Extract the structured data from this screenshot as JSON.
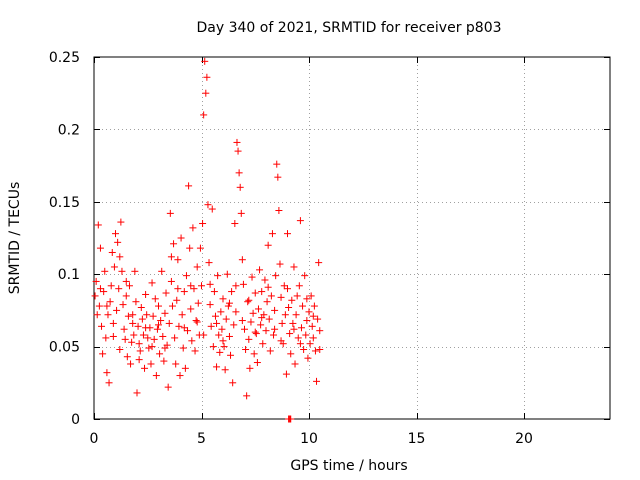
{
  "chart_data": {
    "type": "scatter",
    "title": "Day 340 of 2021, SRMTID for receiver p803",
    "xlabel": "GPS time / hours",
    "ylabel": "SRMTID / TECUs",
    "xlim": [
      0,
      24
    ],
    "ylim": [
      0,
      0.25
    ],
    "xticks": [
      0,
      5,
      10,
      15,
      20
    ],
    "xtick_labels": [
      "0",
      "5",
      "10",
      "15",
      "20"
    ],
    "yticks": [
      0,
      0.05,
      0.1,
      0.15,
      0.2,
      0.25
    ],
    "ytick_labels": [
      "0",
      "0.05",
      "0.1",
      "0.15",
      "0.2",
      "0.25"
    ],
    "grid": true,
    "marker": "+",
    "color": "#ff0000",
    "series": [
      {
        "name": "SRMTID",
        "points": [
          [
            0.05,
            0.085
          ],
          [
            0.1,
            0.095
          ],
          [
            0.15,
            0.072
          ],
          [
            0.2,
            0.134
          ],
          [
            0.25,
            0.078
          ],
          [
            0.3,
            0.118
          ],
          [
            0.35,
            0.064
          ],
          [
            0.4,
            0.045
          ],
          [
            0.45,
            0.088
          ],
          [
            0.5,
            0.102
          ],
          [
            0.55,
            0.056
          ],
          [
            0.6,
            0.032
          ],
          [
            0.65,
            0.072
          ],
          [
            0.7,
            0.025
          ],
          [
            0.75,
            0.081
          ],
          [
            0.8,
            0.092
          ],
          [
            0.85,
            0.115
          ],
          [
            0.9,
            0.066
          ],
          [
            0.95,
            0.105
          ],
          [
            1.0,
            0.128
          ],
          [
            1.05,
            0.075
          ],
          [
            1.1,
            0.122
          ],
          [
            1.15,
            0.09
          ],
          [
            1.2,
            0.048
          ],
          [
            1.25,
            0.136
          ],
          [
            1.3,
            0.102
          ],
          [
            1.35,
            0.079
          ],
          [
            1.4,
            0.062
          ],
          [
            1.45,
            0.055
          ],
          [
            1.5,
            0.085
          ],
          [
            1.55,
            0.043
          ],
          [
            1.6,
            0.071
          ],
          [
            1.65,
            0.092
          ],
          [
            1.7,
            0.038
          ],
          [
            1.75,
            0.053
          ],
          [
            1.8,
            0.066
          ],
          [
            1.85,
            0.058
          ],
          [
            1.9,
            0.102
          ],
          [
            1.95,
            0.081
          ],
          [
            2.0,
            0.018
          ],
          [
            2.05,
            0.064
          ],
          [
            2.1,
            0.052
          ],
          [
            2.15,
            0.047
          ],
          [
            2.2,
            0.077
          ],
          [
            2.25,
            0.069
          ],
          [
            2.3,
            0.058
          ],
          [
            2.35,
            0.035
          ],
          [
            2.4,
            0.086
          ],
          [
            2.45,
            0.072
          ],
          [
            2.5,
            0.056
          ],
          [
            2.55,
            0.049
          ],
          [
            2.6,
            0.063
          ],
          [
            2.65,
            0.038
          ],
          [
            2.7,
            0.094
          ],
          [
            2.75,
            0.071
          ],
          [
            2.8,
            0.055
          ],
          [
            2.85,
            0.083
          ],
          [
            2.9,
            0.03
          ],
          [
            2.95,
            0.062
          ],
          [
            3.0,
            0.078
          ],
          [
            3.05,
            0.045
          ],
          [
            3.1,
            0.068
          ],
          [
            3.15,
            0.102
          ],
          [
            3.2,
            0.057
          ],
          [
            3.25,
            0.04
          ],
          [
            3.3,
            0.073
          ],
          [
            3.35,
            0.087
          ],
          [
            3.4,
            0.051
          ],
          [
            3.45,
            0.022
          ],
          [
            3.5,
            0.066
          ],
          [
            3.55,
            0.142
          ],
          [
            3.6,
            0.095
          ],
          [
            3.65,
            0.078
          ],
          [
            3.7,
            0.121
          ],
          [
            3.75,
            0.056
          ],
          [
            3.8,
            0.038
          ],
          [
            3.85,
            0.082
          ],
          [
            3.9,
            0.11
          ],
          [
            3.95,
            0.064
          ],
          [
            4.0,
            0.03
          ],
          [
            4.05,
            0.125
          ],
          [
            4.1,
            0.072
          ],
          [
            4.15,
            0.049
          ],
          [
            4.2,
            0.088
          ],
          [
            4.25,
            0.035
          ],
          [
            4.3,
            0.099
          ],
          [
            4.35,
            0.061
          ],
          [
            4.4,
            0.161
          ],
          [
            4.45,
            0.118
          ],
          [
            4.5,
            0.076
          ],
          [
            4.55,
            0.054
          ],
          [
            4.6,
            0.132
          ],
          [
            4.65,
            0.09
          ],
          [
            4.7,
            0.047
          ],
          [
            4.75,
            0.068
          ],
          [
            4.8,
            0.105
          ],
          [
            4.85,
            0.08
          ],
          [
            4.9,
            0.058
          ],
          [
            4.95,
            0.118
          ],
          [
            5.0,
            0.092
          ],
          [
            5.05,
            0.135
          ],
          [
            5.1,
            0.21
          ],
          [
            5.15,
            0.247
          ],
          [
            5.2,
            0.225
          ],
          [
            5.25,
            0.236
          ],
          [
            5.3,
            0.148
          ],
          [
            5.35,
            0.108
          ],
          [
            5.4,
            0.079
          ],
          [
            5.45,
            0.064
          ],
          [
            5.5,
            0.145
          ],
          [
            5.55,
            0.05
          ],
          [
            5.6,
            0.088
          ],
          [
            5.65,
            0.071
          ],
          [
            5.7,
            0.036
          ],
          [
            5.75,
            0.099
          ],
          [
            5.8,
            0.058
          ],
          [
            5.85,
            0.046
          ],
          [
            5.9,
            0.074
          ],
          [
            5.95,
            0.062
          ],
          [
            6.0,
            0.083
          ],
          [
            6.05,
            0.05
          ],
          [
            6.1,
            0.034
          ],
          [
            6.15,
            0.069
          ],
          [
            6.2,
            0.1
          ],
          [
            6.25,
            0.078
          ],
          [
            6.3,
            0.057
          ],
          [
            6.35,
            0.044
          ],
          [
            6.4,
            0.088
          ],
          [
            6.45,
            0.025
          ],
          [
            6.5,
            0.065
          ],
          [
            6.55,
            0.135
          ],
          [
            6.6,
            0.074
          ],
          [
            6.65,
            0.191
          ],
          [
            6.7,
            0.185
          ],
          [
            6.75,
            0.17
          ],
          [
            6.8,
            0.16
          ],
          [
            6.85,
            0.142
          ],
          [
            6.9,
            0.11
          ],
          [
            6.95,
            0.093
          ],
          [
            7.0,
            0.062
          ],
          [
            7.05,
            0.048
          ],
          [
            7.1,
            0.016
          ],
          [
            7.15,
            0.081
          ],
          [
            7.2,
            0.055
          ],
          [
            7.25,
            0.035
          ],
          [
            7.3,
            0.067
          ],
          [
            7.35,
            0.098
          ],
          [
            7.4,
            0.073
          ],
          [
            7.45,
            0.045
          ],
          [
            7.5,
            0.087
          ],
          [
            7.55,
            0.059
          ],
          [
            7.6,
            0.039
          ],
          [
            7.65,
            0.076
          ],
          [
            7.7,
            0.103
          ],
          [
            7.75,
            0.065
          ],
          [
            7.8,
            0.088
          ],
          [
            7.85,
            0.052
          ],
          [
            7.9,
            0.072
          ],
          [
            7.95,
            0.096
          ],
          [
            8.0,
            0.061
          ],
          [
            8.05,
            0.081
          ],
          [
            8.1,
            0.12
          ],
          [
            8.15,
            0.069
          ],
          [
            8.2,
            0.047
          ],
          [
            8.25,
            0.085
          ],
          [
            8.3,
            0.128
          ],
          [
            8.35,
            0.058
          ],
          [
            8.4,
            0.075
          ],
          [
            8.45,
            0.099
          ],
          [
            8.5,
            0.176
          ],
          [
            8.55,
            0.167
          ],
          [
            8.6,
            0.144
          ],
          [
            8.65,
            0.107
          ],
          [
            8.7,
            0.084
          ],
          [
            8.75,
            0.066
          ],
          [
            8.8,
            0.052
          ],
          [
            8.85,
            0.092
          ],
          [
            8.9,
            0.072
          ],
          [
            8.95,
            0.031
          ],
          [
            9.0,
            0.128
          ],
          [
            9.05,
            0.077
          ],
          [
            9.1,
            0.059
          ],
          [
            9.15,
            0.045
          ],
          [
            9.2,
            0.082
          ],
          [
            9.25,
            0.066
          ],
          [
            9.3,
            0.105
          ],
          [
            9.35,
            0.038
          ],
          [
            9.4,
            0.072
          ],
          [
            9.45,
            0.085
          ],
          [
            9.5,
            0.056
          ],
          [
            9.55,
            0.092
          ],
          [
            9.6,
            0.137
          ],
          [
            9.65,
            0.063
          ],
          [
            9.7,
            0.078
          ],
          [
            9.75,
            0.048
          ],
          [
            9.8,
            0.099
          ],
          [
            9.85,
            0.058
          ],
          [
            9.9,
            0.068
          ],
          [
            9.95,
            0.042
          ],
          [
            10.0,
            0.074
          ],
          [
            10.05,
            0.052
          ],
          [
            10.1,
            0.085
          ],
          [
            10.15,
            0.064
          ],
          [
            10.2,
            0.056
          ],
          [
            10.25,
            0.078
          ],
          [
            10.3,
            0.047
          ],
          [
            10.35,
            0.026
          ],
          [
            10.4,
            0.069
          ],
          [
            10.45,
            0.108
          ],
          [
            10.5,
            0.061
          ],
          [
            0.3,
            0.09
          ],
          [
            0.6,
            0.078
          ],
          [
            0.9,
            0.057
          ],
          [
            1.2,
            0.112
          ],
          [
            1.5,
            0.095
          ],
          [
            1.8,
            0.072
          ],
          [
            2.1,
            0.041
          ],
          [
            2.4,
            0.063
          ],
          [
            2.7,
            0.05
          ],
          [
            3.0,
            0.065
          ],
          [
            3.3,
            0.049
          ],
          [
            3.6,
            0.112
          ],
          [
            3.9,
            0.09
          ],
          [
            4.2,
            0.063
          ],
          [
            4.5,
            0.092
          ],
          [
            4.8,
            0.067
          ],
          [
            5.1,
            0.058
          ],
          [
            5.4,
            0.093
          ],
          [
            5.7,
            0.066
          ],
          [
            6.0,
            0.054
          ],
          [
            6.3,
            0.08
          ],
          [
            6.6,
            0.092
          ],
          [
            6.9,
            0.068
          ],
          [
            7.2,
            0.082
          ],
          [
            7.5,
            0.06
          ],
          [
            7.8,
            0.07
          ],
          [
            8.1,
            0.091
          ],
          [
            8.4,
            0.062
          ],
          [
            8.7,
            0.054
          ],
          [
            9.0,
            0.09
          ],
          [
            9.3,
            0.062
          ],
          [
            9.6,
            0.052
          ],
          [
            9.9,
            0.083
          ],
          [
            10.2,
            0.071
          ],
          [
            10.5,
            0.048
          ],
          [
            9.05,
            0.0
          ],
          [
            9.08,
            0.0
          ],
          [
            9.12,
            0.0
          ],
          [
            9.15,
            0.0
          ]
        ]
      }
    ]
  }
}
